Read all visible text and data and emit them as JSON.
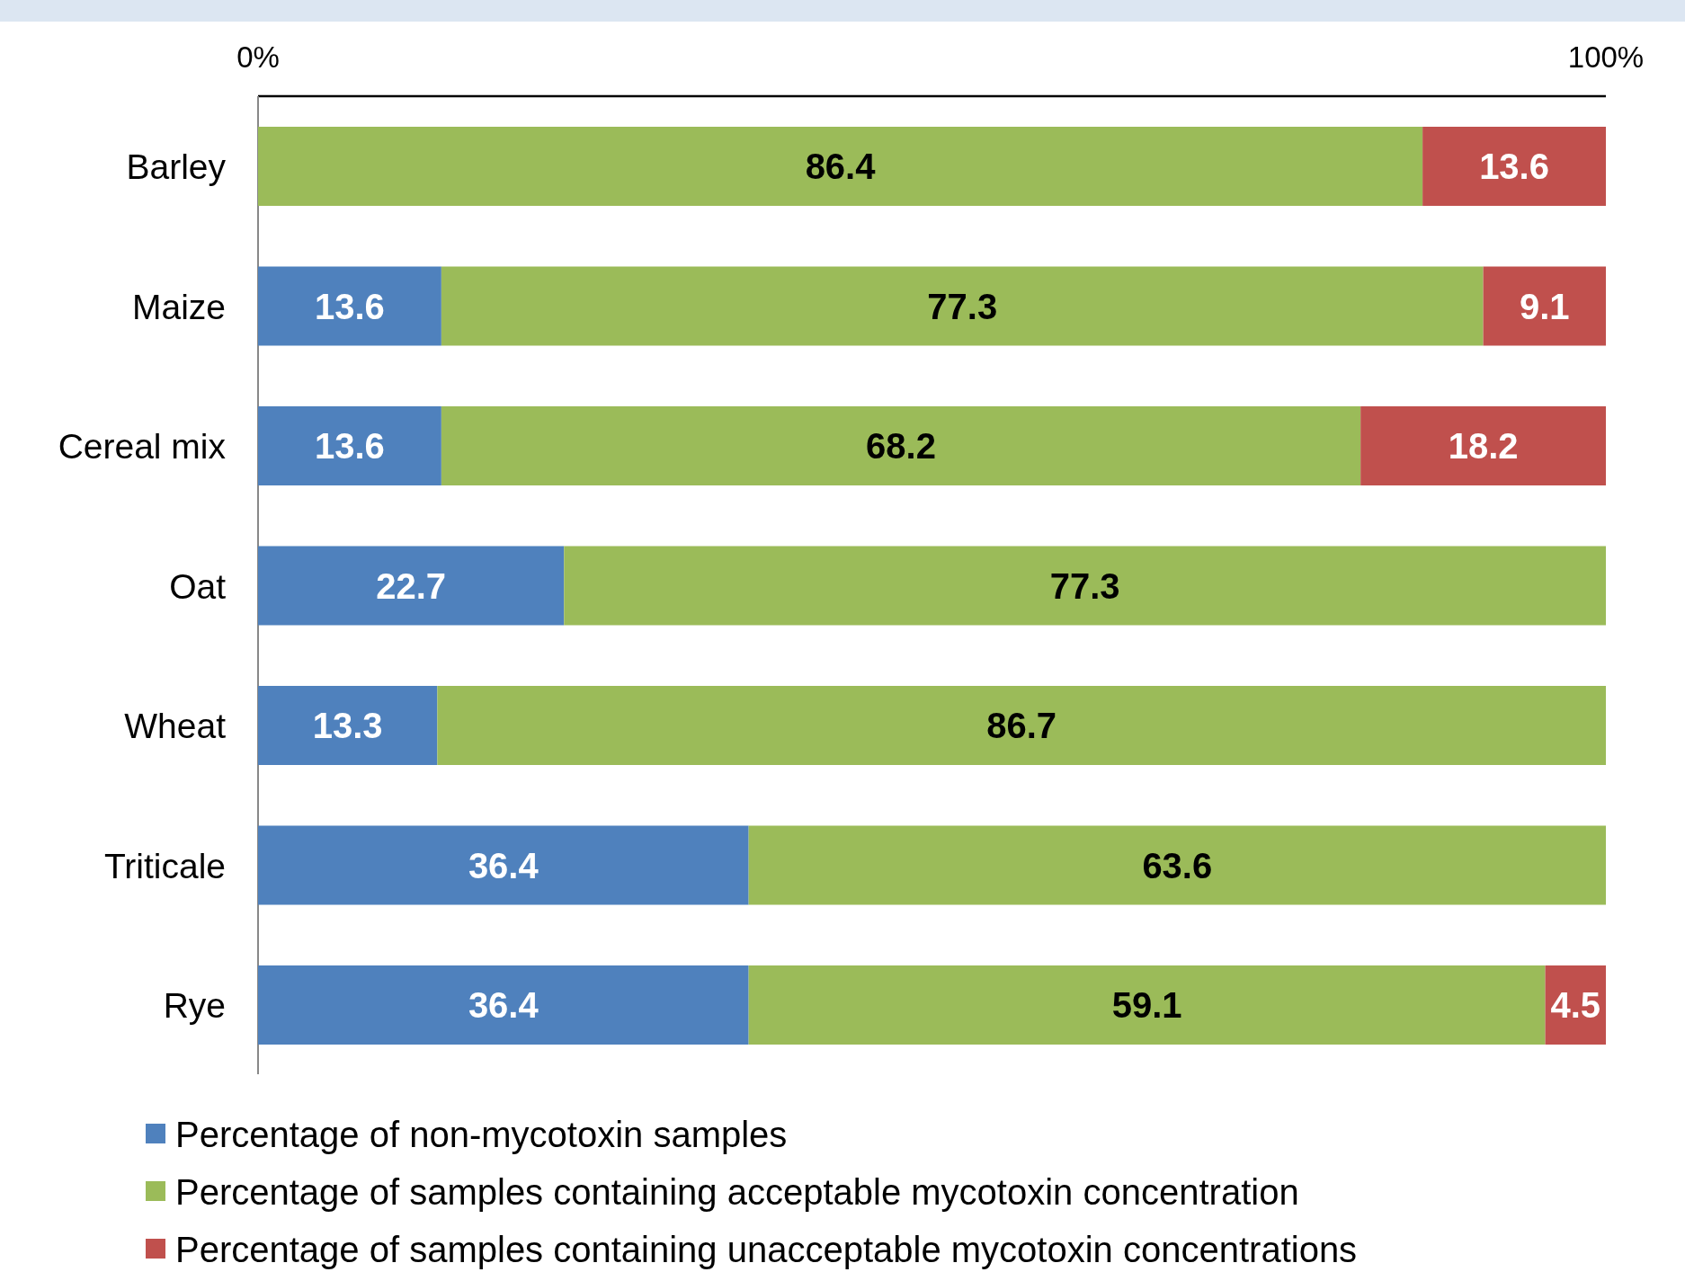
{
  "chart_data": {
    "type": "bar",
    "orientation": "horizontal",
    "stacked": true,
    "data_labels": true,
    "legend": "bottom",
    "grid": false,
    "categories": [
      "Barley",
      "Maize",
      "Cereal mix",
      "Oat",
      "Wheat",
      "Triticale",
      "Rye"
    ],
    "xlim": [
      0,
      100
    ],
    "xticks": [
      {
        "value": 0,
        "label": "0%"
      },
      {
        "value": 100,
        "label": "100%"
      }
    ],
    "series": [
      {
        "name": "Percentage of non-mycotoxin samples",
        "color": "#4f81bd",
        "values": [
          null,
          13.6,
          13.6,
          22.7,
          13.3,
          36.4,
          36.4
        ]
      },
      {
        "name": "Percentage of samples containing acceptable mycotoxin concentration",
        "color": "#9bbb59",
        "values": [
          86.4,
          77.3,
          68.2,
          77.3,
          86.7,
          63.6,
          59.1
        ]
      },
      {
        "name": "Percentage of samples containing unacceptable mycotoxin concentrations",
        "color": "#c0504d",
        "values": [
          13.6,
          9.1,
          18.2,
          null,
          null,
          null,
          4.5
        ]
      }
    ]
  }
}
